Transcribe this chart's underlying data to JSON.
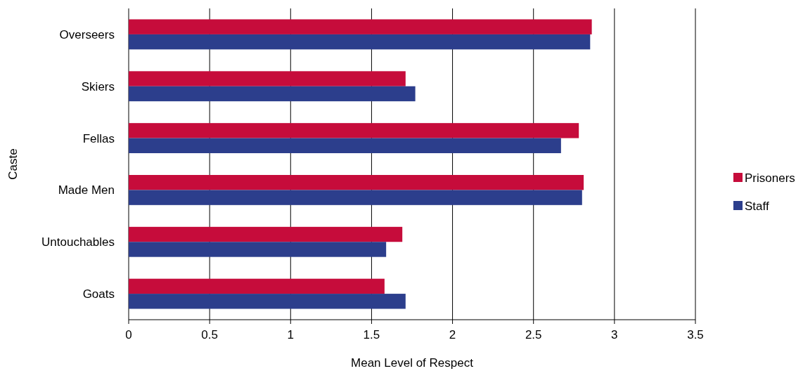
{
  "chart_data": {
    "type": "bar",
    "orientation": "horizontal",
    "xlabel": "Mean Level of Respect",
    "ylabel": "Caste",
    "categories": [
      "Overseers",
      "Skiers",
      "Fellas",
      "Made Men",
      "Untouchables",
      "Goats"
    ],
    "series": [
      {
        "name": "Prisoners",
        "color": "#c60c3b",
        "values": [
          2.86,
          1.71,
          2.78,
          2.81,
          1.69,
          1.58
        ]
      },
      {
        "name": "Staff",
        "color": "#2c3e8c",
        "values": [
          2.85,
          1.77,
          2.67,
          2.8,
          1.59,
          1.71
        ]
      }
    ],
    "xlim": [
      0,
      3.5
    ],
    "xticks": [
      0,
      0.5,
      1,
      1.5,
      2,
      2.5,
      3,
      3.5
    ],
    "grid": "x",
    "legend": "right"
  }
}
